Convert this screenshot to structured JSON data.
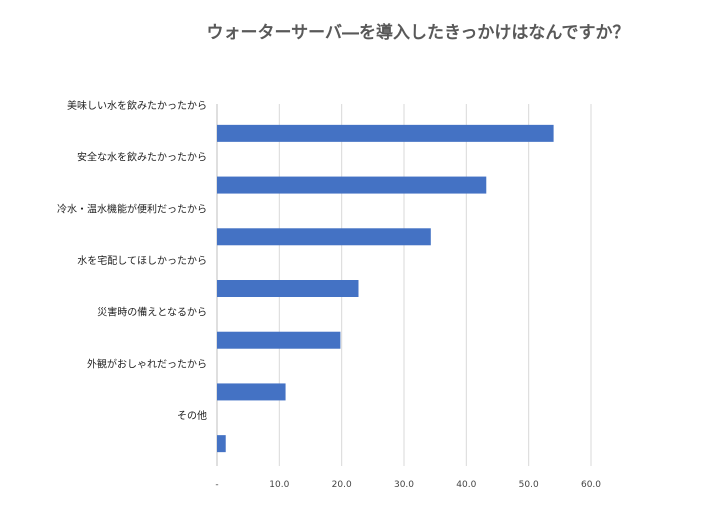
{
  "chart_data": {
    "type": "bar",
    "orientation": "horizontal",
    "title": "ウォーターサーバ―を導入したきっかけはなんですか？",
    "categories": [
      "美味しい水を飲みたかったから",
      "安全な水を飲みたかったから",
      "冷水・温水機能が便利だったから",
      "水を宅配してほしかったから",
      "災害時の備えとなるから",
      "外観がおしゃれだったから",
      "その他"
    ],
    "values": [
      54.0,
      43.2,
      34.3,
      22.7,
      19.8,
      11.0,
      1.4
    ],
    "xlim": [
      0,
      60
    ],
    "x_ticks": [
      0,
      10,
      20,
      30,
      40,
      50,
      60
    ],
    "x_tick_labels": [
      "-",
      "10.0",
      "20.0",
      "30.0",
      "40.0",
      "50.0",
      "60.0"
    ],
    "xlabel": "",
    "ylabel": "",
    "grid": true,
    "legend": "none",
    "bar_color": "#4472c4"
  }
}
